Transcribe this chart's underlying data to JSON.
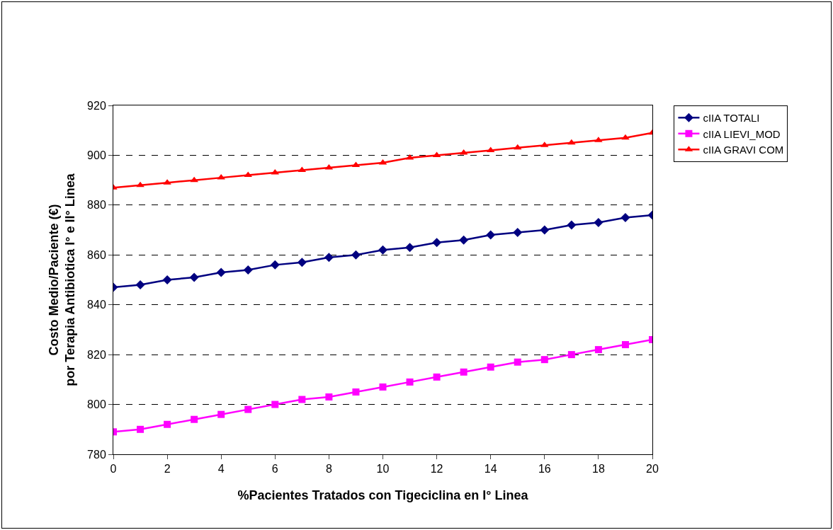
{
  "chart_data": {
    "type": "line",
    "xlabel": "%Pacientes Tratados con Tigeciclina en I° Linea",
    "ylabel": "Costo Medio/Paciente (€)\npor Terapia Antibiotica I° e II° Linea",
    "x": [
      0,
      1,
      2,
      3,
      4,
      5,
      6,
      7,
      8,
      9,
      10,
      11,
      12,
      13,
      14,
      15,
      16,
      17,
      18,
      19,
      20
    ],
    "series": [
      {
        "name": "cIIA TOTALI",
        "color": "#000080",
        "marker": "diamond",
        "values": [
          847,
          848,
          850,
          851,
          853,
          854,
          856,
          857,
          859,
          860,
          862,
          863,
          865,
          866,
          868,
          869,
          870,
          872,
          873,
          875,
          876
        ]
      },
      {
        "name": "cIIA LIEVI_MOD",
        "color": "#ff00ff",
        "marker": "square",
        "values": [
          789,
          790,
          792,
          794,
          796,
          798,
          800,
          802,
          803,
          805,
          807,
          809,
          811,
          813,
          815,
          817,
          818,
          820,
          822,
          824,
          826
        ]
      },
      {
        "name": "cIIA GRAVI COM",
        "color": "#ff0000",
        "marker": "triangle",
        "values": [
          887,
          888,
          889,
          890,
          891,
          892,
          893,
          894,
          895,
          896,
          897,
          899,
          900,
          901,
          902,
          903,
          904,
          905,
          906,
          907,
          909
        ]
      }
    ],
    "xlim": [
      0,
      20
    ],
    "xticks": [
      0,
      2,
      4,
      6,
      8,
      10,
      12,
      14,
      16,
      18,
      20
    ],
    "ylim": [
      780,
      920
    ],
    "yticks": [
      780,
      800,
      820,
      840,
      860,
      880,
      900,
      920
    ],
    "grid": "y",
    "legend": "right",
    "line_style": "solid"
  }
}
